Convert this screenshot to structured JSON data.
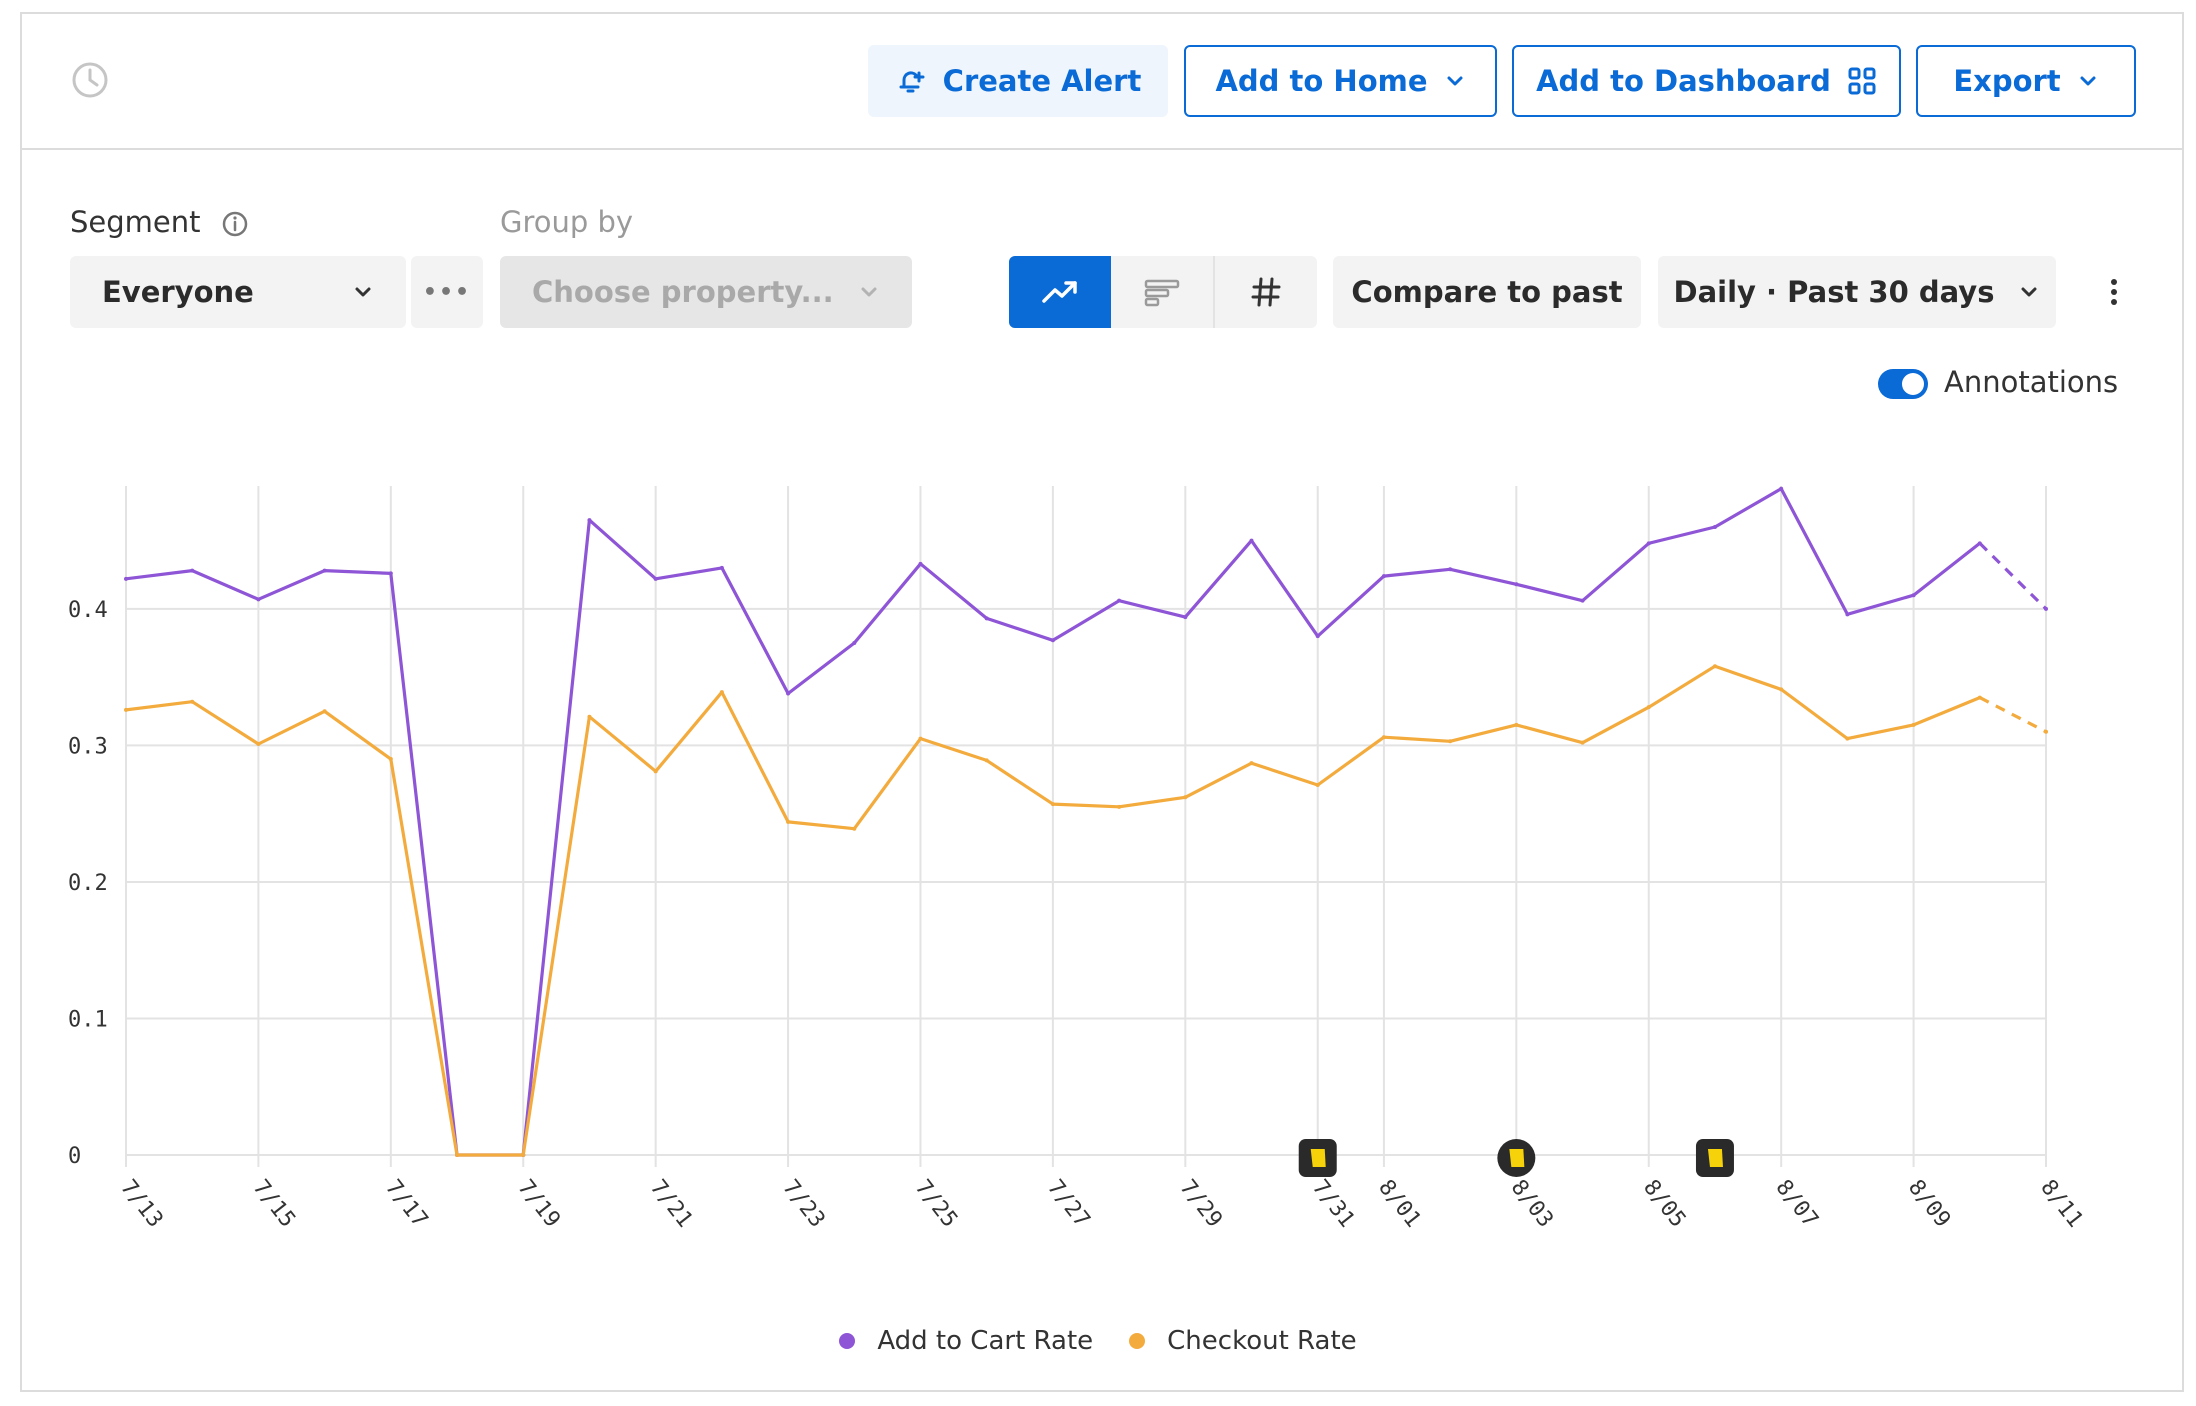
{
  "toolbar": {
    "create_alert": "Create Alert",
    "add_to_home": "Add to Home",
    "add_to_dashboard": "Add to Dashboard",
    "export": "Export"
  },
  "controls": {
    "segment_label": "Segment",
    "segment_value": "Everyone",
    "group_by_label": "Group by",
    "group_by_placeholder": "Choose property...",
    "more_label": "•••",
    "compare_label": "Compare to past",
    "range_label": "Daily · Past 30 days",
    "annotations_label": "Annotations",
    "annotations_on": true,
    "active_view": "line"
  },
  "colors": {
    "accent": "#0a6ad6",
    "add_to_cart": "#8e55d6",
    "checkout": "#f3ab3d",
    "annotation_marker": "#2a2a2a",
    "annotation_flag": "#f6d20b"
  },
  "chart_data": {
    "type": "line",
    "x": [
      "7/13",
      "7/14",
      "7/15",
      "7/16",
      "7/17",
      "7/18",
      "7/19",
      "7/20",
      "7/21",
      "7/22",
      "7/23",
      "7/24",
      "7/25",
      "7/26",
      "7/27",
      "7/28",
      "7/29",
      "7/30",
      "7/31",
      "8/01",
      "8/02",
      "8/03",
      "8/04",
      "8/05",
      "8/06",
      "8/07",
      "8/08",
      "8/09",
      "8/10",
      "8/11"
    ],
    "x_tick_labels": [
      "7/13",
      "7/15",
      "7/17",
      "7/19",
      "7/21",
      "7/23",
      "7/25",
      "7/27",
      "7/29",
      "7/31",
      "8/01",
      "8/03",
      "8/05",
      "8/07",
      "8/09",
      "8/11"
    ],
    "series": [
      {
        "name": "Add to Cart Rate",
        "color": "#8e55d6",
        "values": [
          0.422,
          0.428,
          0.407,
          0.428,
          0.426,
          0,
          0,
          0.465,
          0.422,
          0.43,
          0.338,
          0.375,
          0.433,
          0.393,
          0.377,
          0.406,
          0.394,
          0.45,
          0.38,
          0.424,
          0.429,
          0.418,
          0.406,
          0.448,
          0.46,
          0.488,
          0.396,
          0.41,
          0.448,
          0.4
        ],
        "incomplete_from": "8/10"
      },
      {
        "name": "Checkout Rate",
        "color": "#f3ab3d",
        "values": [
          0.326,
          0.332,
          0.301,
          0.325,
          0.29,
          0,
          0,
          0.321,
          0.281,
          0.339,
          0.244,
          0.239,
          0.305,
          0.289,
          0.257,
          0.255,
          0.262,
          0.287,
          0.271,
          0.306,
          0.303,
          0.315,
          0.302,
          0.328,
          0.358,
          0.341,
          0.305,
          0.315,
          0.335,
          0.31
        ],
        "incomplete_from": "8/10"
      }
    ],
    "y_ticks": [
      0,
      0.1,
      0.2,
      0.3,
      0.4
    ],
    "ylim": [
      0,
      0.49
    ],
    "grid": true,
    "legend_position": "bottom-center",
    "annotations": [
      "7/31",
      "8/03",
      "8/06"
    ]
  }
}
